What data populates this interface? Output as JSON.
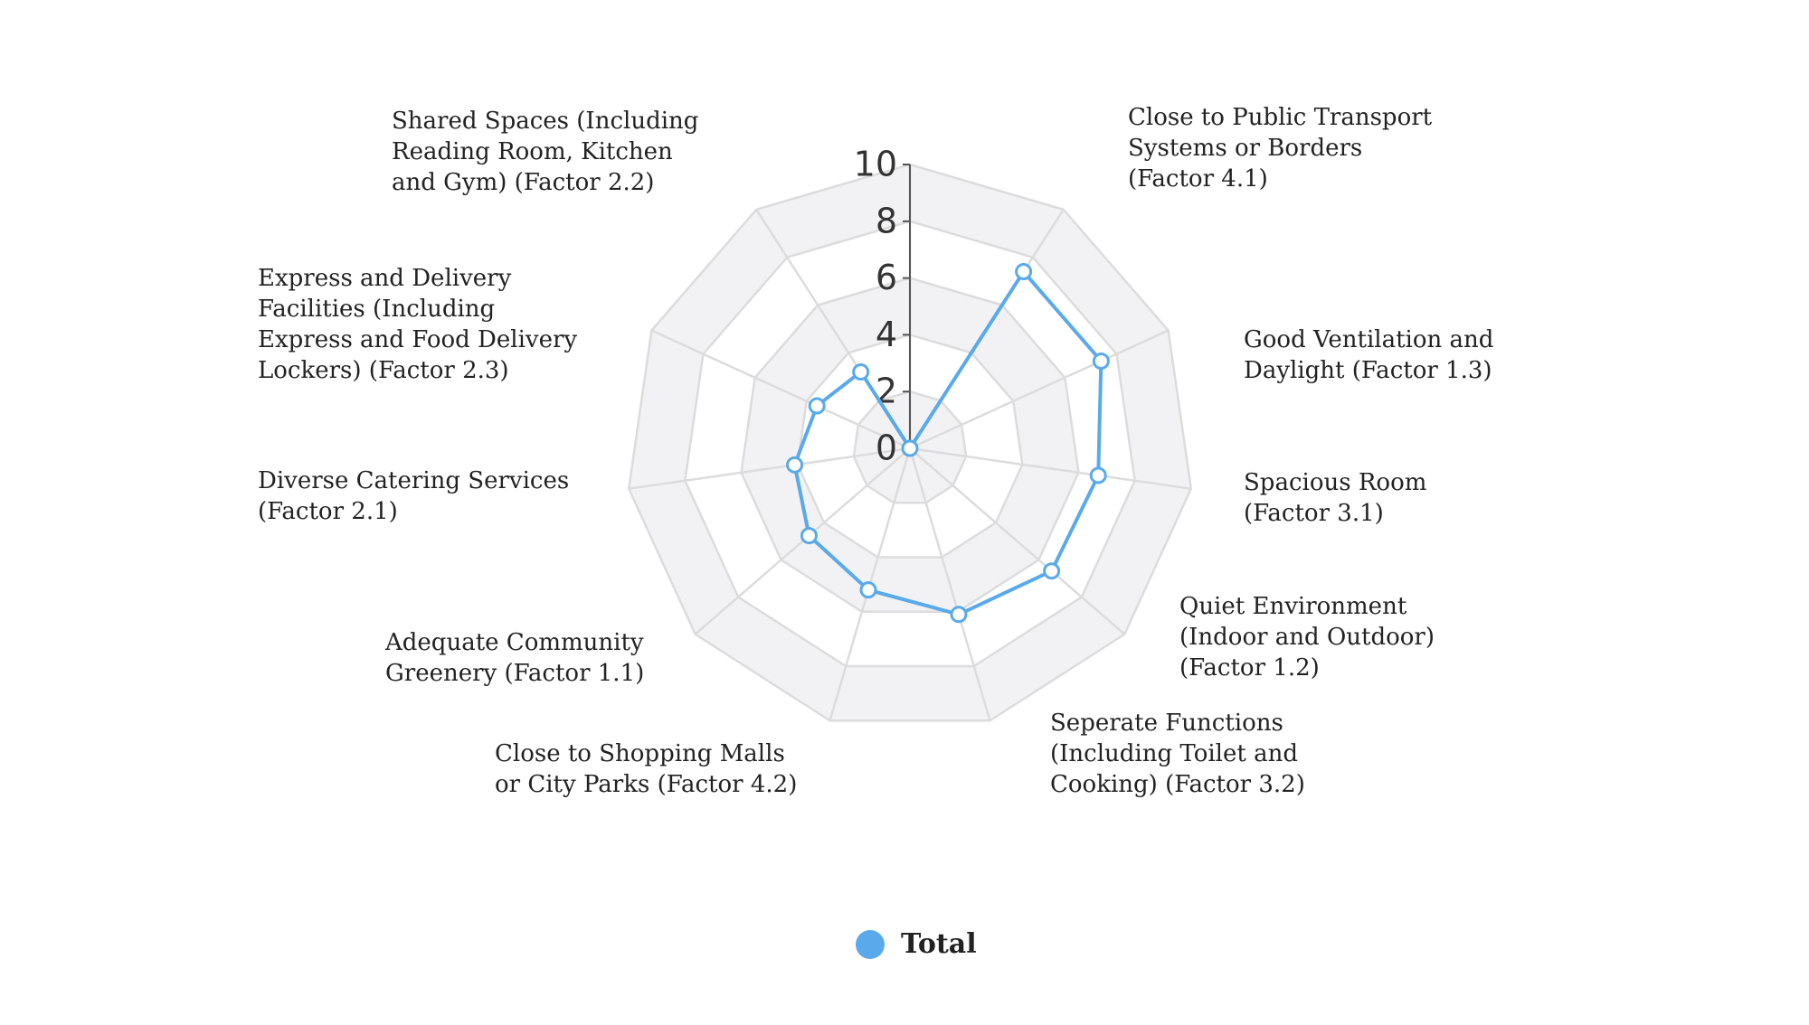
{
  "chart_data": {
    "type": "radar",
    "categories": [
      null,
      "Close to Public Transport\nSystems or Borders\n(Factor 4.1)",
      "Good Ventilation and\nDaylight (Factor 1.3)",
      "Spacious Room\n(Factor 3.1)",
      "Quiet Environment\n(Indoor and Outdoor)\n(Factor 1.2)",
      "Seperate Functions\n(Including Toilet and\nCooking) (Factor 3.2)",
      "Close to Shopping Malls\nor City Parks (Factor 4.2)",
      "Adequate Community\nGreenery (Factor 1.1)",
      "Diverse Catering Services\n(Factor 2.1)",
      "Express and Delivery\nFacilities (Including\nExpress and Food Delivery\nLockers) (Factor 2.3)",
      "Shared Spaces (Including\nReading Room, Kitchen\nand Gym) (Factor 2.2)"
    ],
    "series": [
      {
        "name": "Total",
        "color": "#5aaaeb",
        "values": [
          0,
          7.4,
          7.4,
          6.7,
          6.6,
          6.1,
          5.2,
          4.7,
          4.1,
          3.6,
          3.2
        ]
      }
    ],
    "rlim": [
      0,
      10
    ],
    "rticks": [
      0,
      2,
      4,
      6,
      8,
      10
    ],
    "grid": true,
    "legend": "bottom"
  }
}
